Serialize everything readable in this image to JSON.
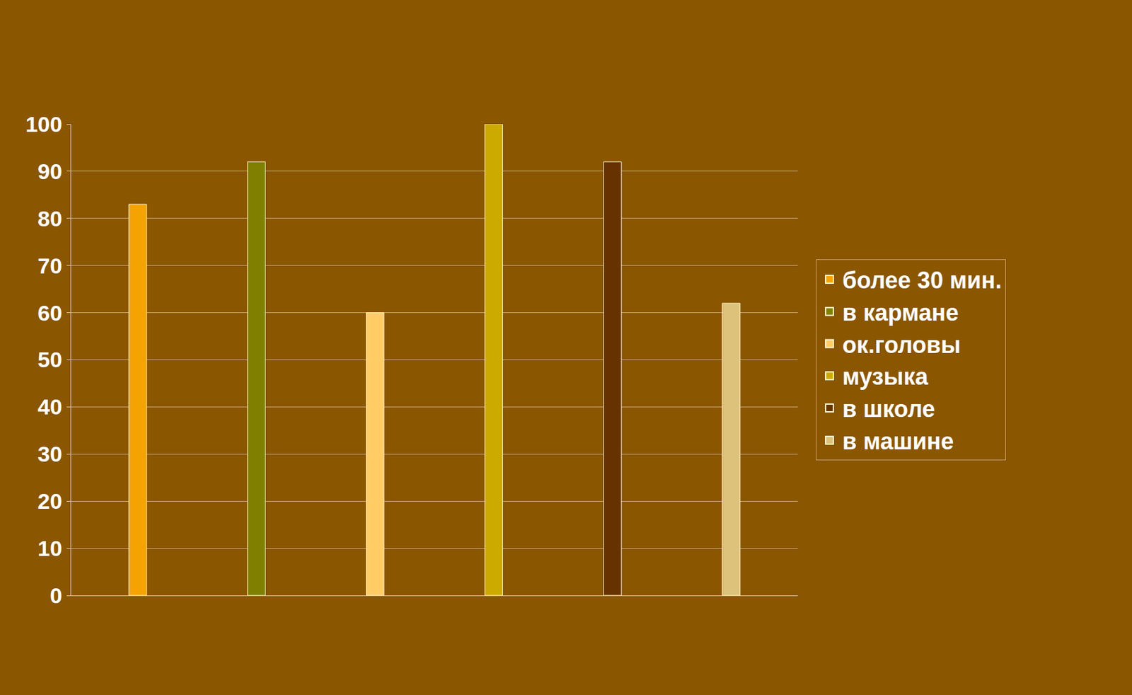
{
  "chart_data": {
    "type": "bar",
    "categories": [
      null
    ],
    "series": [
      {
        "name": "более 30 мин.",
        "color": "#f5a300",
        "values": [
          83
        ]
      },
      {
        "name": "в кармане",
        "color": "#7f7f00",
        "values": [
          92
        ]
      },
      {
        "name": "ок.головы",
        "color": "#ffcc66",
        "values": [
          60
        ]
      },
      {
        "name": "музыка",
        "color": "#ccaa00",
        "values": [
          100
        ]
      },
      {
        "name": "в школе",
        "color": "#663300",
        "values": [
          92
        ]
      },
      {
        "name": "в машине",
        "color": "#dcc27a",
        "values": [
          62
        ]
      }
    ],
    "ylim": [
      0,
      100
    ],
    "yticks": [
      0,
      10,
      20,
      30,
      40,
      50,
      60,
      70,
      80,
      90,
      100
    ],
    "grid": true,
    "legend": "right"
  }
}
